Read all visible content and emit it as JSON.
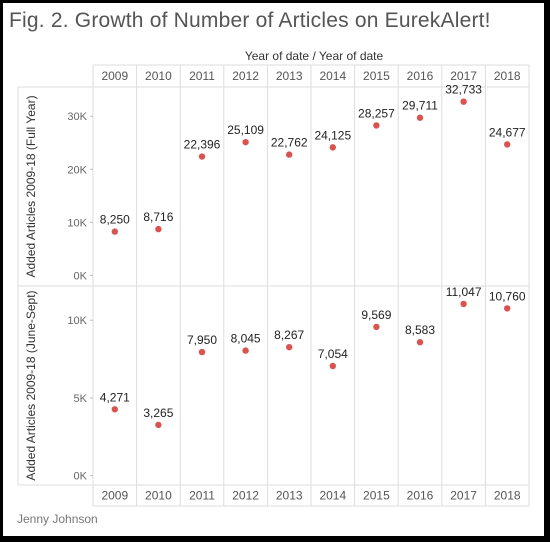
{
  "title": "Fig. 2. Growth of Number of Articles on EurekAlert!",
  "author": "Jenny Johnson",
  "colors": {
    "marker": "#d9534f",
    "grid": "#dddddd",
    "text": "#555555"
  },
  "chart_data": {
    "type": "scatter",
    "column_header": "Year of date  /  Year of date",
    "categories": [
      "2009",
      "2010",
      "2011",
      "2012",
      "2013",
      "2014",
      "2015",
      "2016",
      "2017",
      "2018"
    ],
    "panels": [
      {
        "ylabel": "Added Articles 2009-18 (Full Year)",
        "yticks": [
          "0K",
          "10K",
          "20K",
          "30K"
        ],
        "ytick_values": [
          0,
          10000,
          20000,
          30000
        ],
        "ylim": [
          -2000,
          35500
        ],
        "values": [
          8250,
          8716,
          22396,
          25109,
          22762,
          24125,
          28257,
          29711,
          32733,
          24677
        ],
        "labels": [
          "8,250",
          "8,716",
          "22,396",
          "25,109",
          "22,762",
          "24,125",
          "28,257",
          "29,711",
          "32,733",
          "24,677"
        ]
      },
      {
        "ylabel": "Added Articles 2009-18 (June-Sept)",
        "yticks": [
          "0K",
          "5K",
          "10K"
        ],
        "ytick_values": [
          0,
          5000,
          10000
        ],
        "ylim": [
          -600,
          12200
        ],
        "values": [
          4271,
          3265,
          7950,
          8045,
          8267,
          7054,
          9569,
          8583,
          11047,
          10760
        ],
        "labels": [
          "4,271",
          "3,265",
          "7,950",
          "8,045",
          "8,267",
          "7,054",
          "9,569",
          "8,583",
          "11,047",
          "10,760"
        ]
      }
    ]
  }
}
